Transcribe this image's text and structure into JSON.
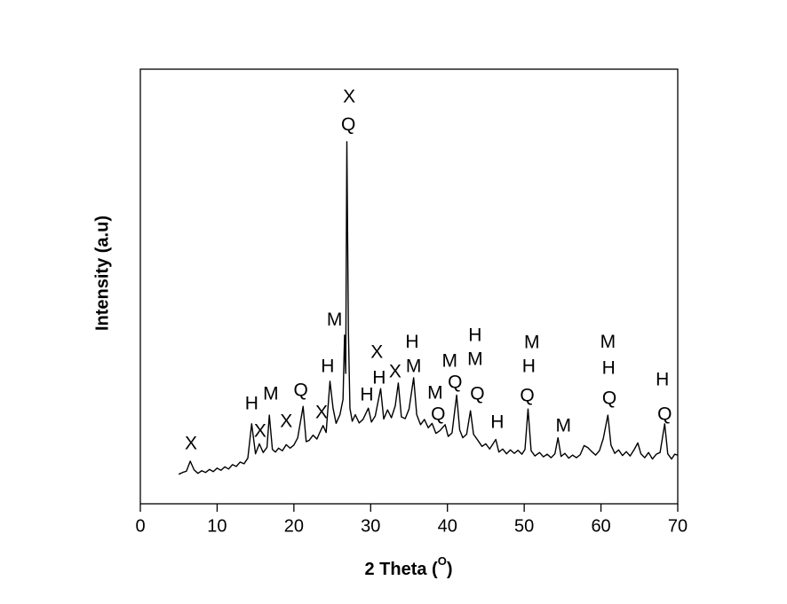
{
  "chart_data": {
    "type": "line",
    "xlabel": [
      "2 Theta (",
      "O",
      ")"
    ],
    "ylabel": "Intensity (a.u)",
    "xlim": [
      0,
      70
    ],
    "xticks": [
      0,
      10,
      20,
      30,
      40,
      50,
      60,
      70
    ],
    "ylim": [
      0,
      100
    ],
    "color": "#000000",
    "x": [
      5,
      5.5,
      6,
      6.5,
      7,
      7.5,
      8,
      8.5,
      9,
      9.5,
      10,
      10.5,
      11,
      11.5,
      12,
      12.5,
      13,
      13.5,
      14,
      14.5,
      15,
      15.5,
      16,
      16.5,
      16.8,
      17.2,
      17.6,
      18,
      18.5,
      19,
      19.5,
      20,
      20.5,
      21.2,
      21.6,
      22,
      22.5,
      23,
      23.4,
      23.8,
      24.2,
      24.7,
      25.1,
      25.5,
      26,
      26.4,
      26.6,
      26.75,
      26.9,
      27.1,
      27.3,
      27.6,
      28,
      28.5,
      29,
      29.7,
      30.1,
      30.6,
      31.3,
      31.7,
      32.2,
      32.7,
      33.2,
      33.6,
      34,
      34.5,
      35,
      35.6,
      36,
      36.5,
      37,
      37.5,
      38,
      38.5,
      39,
      39.7,
      40.1,
      40.6,
      41.2,
      41.6,
      42,
      42.5,
      43,
      43.4,
      44,
      44.5,
      45,
      45.5,
      46.3,
      46.7,
      47.2,
      47.7,
      48.2,
      48.7,
      49.2,
      49.7,
      50.1,
      50.5,
      50.9,
      51.4,
      52,
      52.5,
      53,
      53.5,
      54,
      54.4,
      54.8,
      55.3,
      55.8,
      56.3,
      56.8,
      57.3,
      57.8,
      58.3,
      58.8,
      59.3,
      59.8,
      60.3,
      60.9,
      61.3,
      61.8,
      62.3,
      62.8,
      63.3,
      63.8,
      64.3,
      64.8,
      65.2,
      65.7,
      66.2,
      66.7,
      67.2,
      67.7,
      68.3,
      68.7,
      69.2,
      69.6,
      70
    ],
    "values": [
      6.8,
      7.2,
      7.5,
      9.8,
      7.8,
      7.0,
      7.6,
      7.2,
      7.9,
      7.4,
      8.2,
      7.7,
      8.5,
      8.0,
      9.0,
      8.6,
      9.6,
      9.2,
      10.5,
      18.4,
      11.5,
      13.8,
      11.8,
      13.0,
      20.4,
      12.5,
      11.9,
      12.8,
      12.2,
      13.6,
      12.8,
      13.5,
      15.2,
      22.4,
      14.3,
      14.6,
      15.8,
      14.9,
      16.5,
      18.0,
      16.4,
      28.2,
      22,
      18.5,
      20.5,
      24,
      38.8,
      30,
      83.3,
      40,
      22,
      19,
      20.5,
      18.6,
      19.4,
      22.0,
      18.8,
      20.2,
      26.5,
      19.5,
      21.6,
      19.8,
      22.5,
      27.8,
      20.0,
      19.6,
      21.8,
      29.0,
      20.5,
      18.2,
      19.4,
      17.5,
      18.5,
      16.2,
      16.8,
      18.2,
      15.5,
      16.3,
      25.0,
      17.0,
      15.2,
      16.0,
      21.4,
      16.0,
      14.5,
      13.2,
      13.8,
      12.6,
      14.8,
      11.9,
      12.6,
      11.5,
      12.4,
      11.6,
      12.3,
      11.4,
      12.5,
      21.8,
      12.2,
      11.0,
      11.8,
      10.8,
      11.4,
      10.6,
      11.5,
      15.2,
      10.9,
      11.6,
      10.5,
      11.2,
      10.6,
      11.3,
      13.4,
      12.9,
      12.0,
      11.2,
      12.2,
      15.0,
      20.4,
      13.5,
      11.6,
      12.4,
      11.1,
      12.0,
      11.0,
      12.4,
      14.0,
      11.5,
      10.6,
      11.8,
      10.3,
      11.4,
      11.8,
      18.4,
      11.5,
      10.3,
      11.4,
      11.2
    ],
    "annotations": [
      {
        "text": "X",
        "x": 6.6,
        "y": 13.7
      },
      {
        "text": "H",
        "x": 14.5,
        "y": 22.9
      },
      {
        "text": "X",
        "x": 15.6,
        "y": 16.5
      },
      {
        "text": "M",
        "x": 17.0,
        "y": 25.1
      },
      {
        "text": "X",
        "x": 19.0,
        "y": 18.8
      },
      {
        "text": "Q",
        "x": 20.9,
        "y": 25.9
      },
      {
        "text": "X",
        "x": 23.6,
        "y": 20.8
      },
      {
        "text": "H",
        "x": 24.4,
        "y": 31.4
      },
      {
        "text": "M",
        "x": 25.3,
        "y": 42.2
      },
      {
        "text": "X",
        "x": 27.2,
        "y": 93.5
      },
      {
        "text": "Q",
        "x": 27.1,
        "y": 87.1
      },
      {
        "text": "H",
        "x": 29.5,
        "y": 24.9
      },
      {
        "text": "X",
        "x": 30.8,
        "y": 34.7
      },
      {
        "text": "H",
        "x": 31.1,
        "y": 28.8
      },
      {
        "text": "X",
        "x": 33.2,
        "y": 30.2
      },
      {
        "text": "H",
        "x": 35.4,
        "y": 37.1
      },
      {
        "text": "M",
        "x": 35.6,
        "y": 31.4
      },
      {
        "text": "M",
        "x": 38.4,
        "y": 25.3
      },
      {
        "text": "Q",
        "x": 38.8,
        "y": 20.4
      },
      {
        "text": "M",
        "x": 40.3,
        "y": 32.7
      },
      {
        "text": "Q",
        "x": 41.0,
        "y": 27.8
      },
      {
        "text": "H",
        "x": 43.6,
        "y": 38.6
      },
      {
        "text": "M",
        "x": 43.6,
        "y": 33.1
      },
      {
        "text": "Q",
        "x": 43.9,
        "y": 25.1
      },
      {
        "text": "H",
        "x": 46.5,
        "y": 18.6
      },
      {
        "text": "M",
        "x": 51.0,
        "y": 36.9
      },
      {
        "text": "H",
        "x": 50.6,
        "y": 31.4
      },
      {
        "text": "Q",
        "x": 50.4,
        "y": 24.7
      },
      {
        "text": "M",
        "x": 55.1,
        "y": 17.8
      },
      {
        "text": "M",
        "x": 60.9,
        "y": 37.1
      },
      {
        "text": "H",
        "x": 61.0,
        "y": 31.0
      },
      {
        "text": "Q",
        "x": 61.1,
        "y": 24.1
      },
      {
        "text": "H",
        "x": 68.0,
        "y": 28.4
      },
      {
        "text": "Q",
        "x": 68.3,
        "y": 20.4
      }
    ]
  }
}
